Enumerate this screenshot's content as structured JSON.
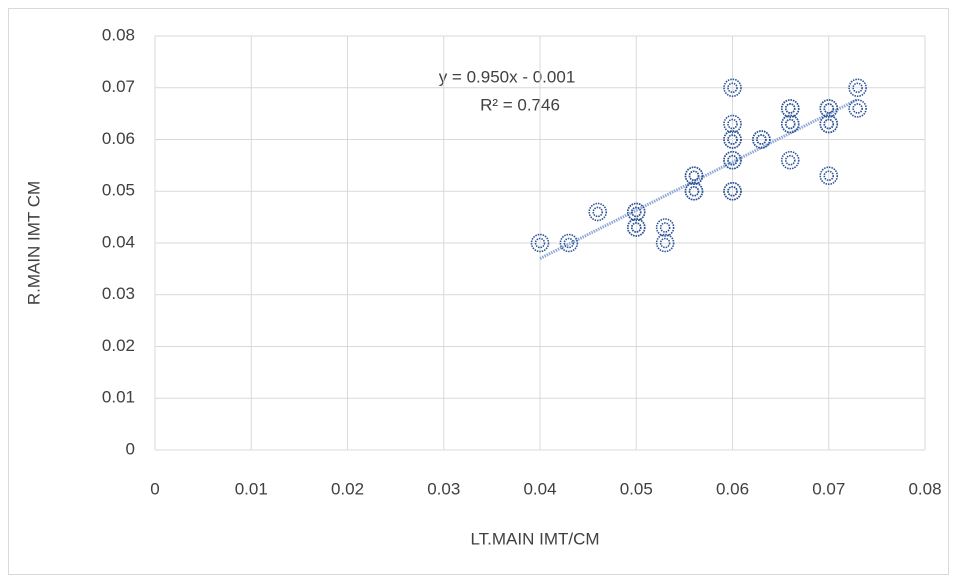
{
  "chart_data": {
    "type": "scatter",
    "annotations": [
      "y = 0.950x - 0.001",
      "R² = 0.746"
    ],
    "x_label": "LT.MAIN IMT/CM",
    "y_label": "R.MAIN IMT CM",
    "x": [
      0.04,
      0.043,
      0.046,
      0.05,
      0.05,
      0.05,
      0.05,
      0.053,
      0.053,
      0.056,
      0.056,
      0.056,
      0.056,
      0.06,
      0.06,
      0.06,
      0.06,
      0.06,
      0.06,
      0.06,
      0.06,
      0.063,
      0.063,
      0.066,
      0.066,
      0.066,
      0.066,
      0.066,
      0.07,
      0.07,
      0.07,
      0.07,
      0.07,
      0.073,
      0.073
    ],
    "values": [
      0.04,
      0.04,
      0.046,
      0.046,
      0.046,
      0.043,
      0.043,
      0.043,
      0.04,
      0.053,
      0.053,
      0.05,
      0.05,
      0.07,
      0.063,
      0.06,
      0.06,
      0.056,
      0.056,
      0.05,
      0.05,
      0.06,
      0.06,
      0.066,
      0.066,
      0.063,
      0.063,
      0.056,
      0.066,
      0.066,
      0.063,
      0.063,
      0.053,
      0.07,
      0.066
    ],
    "color": "#2f5597",
    "trendline": true,
    "xlim": [
      0,
      0.08
    ],
    "xticks": [
      0,
      0.01,
      0.02,
      0.03,
      0.04,
      0.05,
      0.06,
      0.07,
      0.08
    ],
    "ylim": [
      0,
      0.08
    ],
    "yticks": [
      0,
      0.01,
      0.02,
      0.03,
      0.04,
      0.05,
      0.06,
      0.07,
      0.08
    ],
    "grid": true
  }
}
